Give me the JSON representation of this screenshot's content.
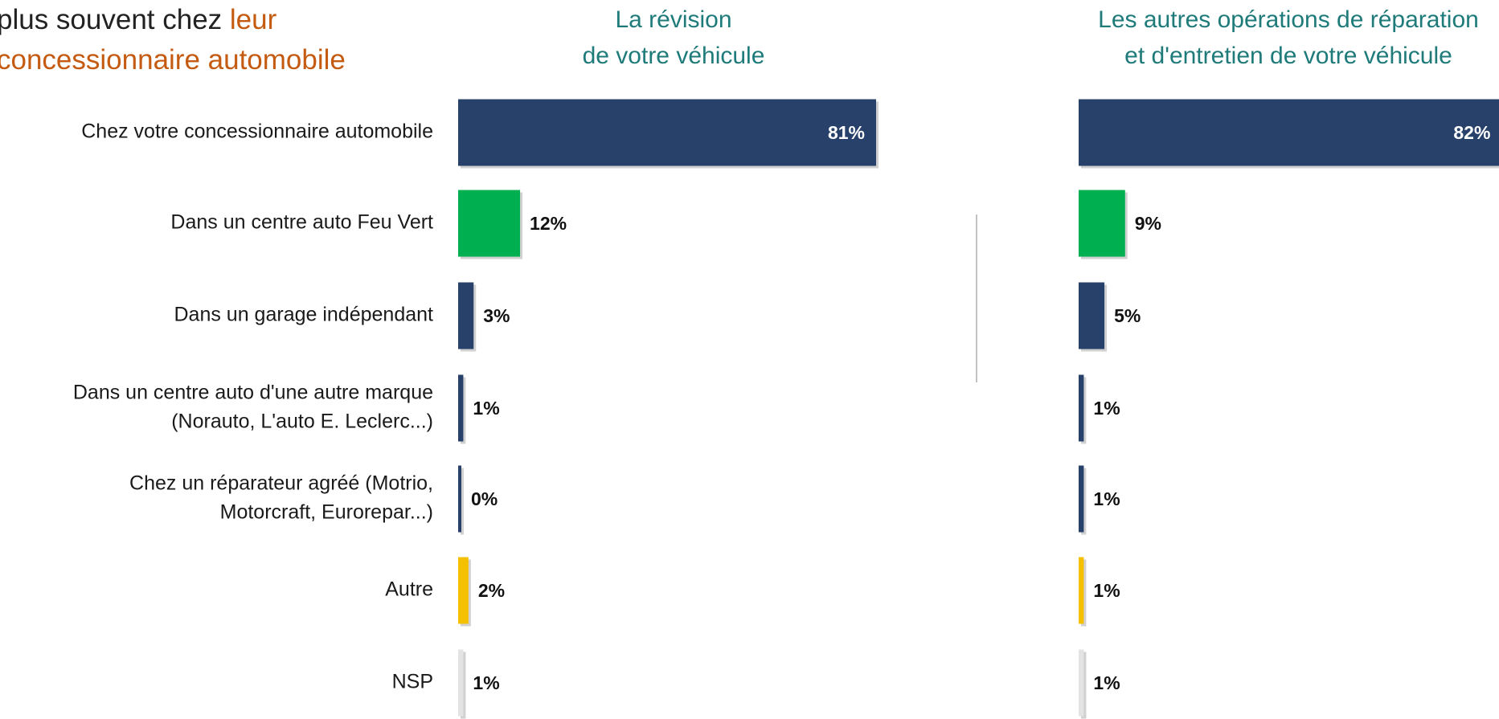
{
  "headline": {
    "lines": [
      [
        {
          "text": "plus souvent chez ",
          "color": "#222222"
        },
        {
          "text": "leur",
          "color": "#c55a11"
        }
      ],
      [
        {
          "text": "concessionnaire automobile",
          "color": "#c55a11"
        }
      ]
    ]
  },
  "chart_data": [
    {
      "type": "bar",
      "orientation": "horizontal",
      "title": [
        "La révision",
        "de votre véhicule"
      ],
      "categories": [
        "Chez votre concessionnaire automobile",
        "Dans un centre auto Feu Vert",
        "Dans un garage indépendant",
        [
          "Dans un centre auto d'une autre marque",
          "(Norauto, L'auto E. Leclerc...)"
        ],
        [
          "Chez un réparateur agréé (Motrio,",
          "Motorcraft, Eurorepar...)"
        ],
        "Autre",
        "NSP"
      ],
      "values": [
        81,
        12,
        3,
        1,
        0,
        2,
        1
      ],
      "value_labels": [
        "81%",
        "12%",
        "3%",
        "1%",
        "0%",
        "2%",
        "1%"
      ],
      "colors": [
        "#27416a",
        "#00b050",
        "#27416a",
        "#27416a",
        "#27416a",
        "#f5c000",
        "#e3e3e3"
      ]
    },
    {
      "type": "bar",
      "orientation": "horizontal",
      "title": [
        "Les autres opérations de réparation",
        "et d'entretien de votre véhicule"
      ],
      "values": [
        82,
        9,
        5,
        1,
        1,
        1,
        1
      ],
      "value_labels": [
        "82%",
        "9%",
        "5%",
        "1%",
        "1%",
        "1%",
        "1%"
      ],
      "colors": [
        "#27416a",
        "#00b050",
        "#27416a",
        "#27416a",
        "#27416a",
        "#f5c000",
        "#e3e3e3"
      ]
    }
  ]
}
